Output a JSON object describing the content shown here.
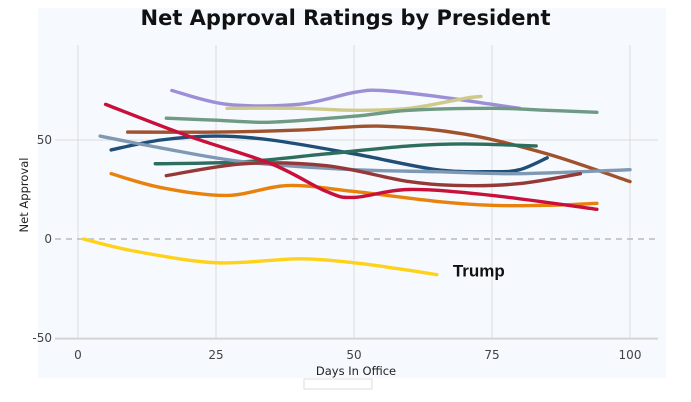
{
  "chart_data": {
    "type": "line",
    "title": "Net Approval Ratings by President",
    "xlabel": "Days In Office",
    "ylabel": "Net Approval",
    "xlim": [
      -4,
      104
    ],
    "ylim": [
      -50,
      86
    ],
    "xticks": [
      0,
      25,
      50,
      75,
      100
    ],
    "yticks": [
      -50,
      0,
      50
    ],
    "grid": true,
    "zero_line": "dashed",
    "annotation": {
      "text": "Trump",
      "x": 67,
      "y": -18
    },
    "series": [
      {
        "color": "#9b8fd6",
        "points": [
          [
            17,
            75
          ],
          [
            27,
            68
          ],
          [
            40,
            68
          ],
          [
            50,
            74
          ],
          [
            55,
            75
          ],
          [
            65,
            72
          ],
          [
            75,
            68
          ],
          [
            80,
            66
          ]
        ]
      },
      {
        "color": "#cfc98a",
        "points": [
          [
            27,
            66
          ],
          [
            40,
            66
          ],
          [
            50,
            65
          ],
          [
            60,
            66
          ],
          [
            70,
            71
          ],
          [
            73,
            72
          ]
        ]
      },
      {
        "color": "#6f9a83",
        "points": [
          [
            16,
            61
          ],
          [
            25,
            60
          ],
          [
            35,
            59
          ],
          [
            50,
            62
          ],
          [
            60,
            65
          ],
          [
            75,
            66
          ],
          [
            85,
            65
          ],
          [
            94,
            64
          ]
        ]
      },
      {
        "color": "#a0522d",
        "points": [
          [
            9,
            54
          ],
          [
            25,
            54
          ],
          [
            40,
            55
          ],
          [
            55,
            57
          ],
          [
            70,
            53
          ],
          [
            85,
            43
          ],
          [
            100,
            29
          ]
        ]
      },
      {
        "color": "#1f4e79",
        "points": [
          [
            6,
            45
          ],
          [
            15,
            50
          ],
          [
            25,
            52
          ],
          [
            35,
            50
          ],
          [
            50,
            43
          ],
          [
            65,
            35
          ],
          [
            75,
            34
          ],
          [
            80,
            35
          ],
          [
            85,
            41
          ]
        ]
      },
      {
        "color": "#2e6e5e",
        "points": [
          [
            14,
            38
          ],
          [
            30,
            39
          ],
          [
            45,
            43
          ],
          [
            60,
            47
          ],
          [
            70,
            48
          ],
          [
            83,
            47
          ]
        ]
      },
      {
        "color": "#7f98b4",
        "points": [
          [
            4,
            52
          ],
          [
            15,
            46
          ],
          [
            30,
            39
          ],
          [
            50,
            35
          ],
          [
            65,
            34
          ],
          [
            80,
            33
          ],
          [
            100,
            35
          ]
        ]
      },
      {
        "color": "#943838",
        "points": [
          [
            16,
            32
          ],
          [
            30,
            38
          ],
          [
            45,
            37
          ],
          [
            60,
            29
          ],
          [
            70,
            27
          ],
          [
            80,
            28
          ],
          [
            91,
            33
          ]
        ]
      },
      {
        "color": "#e8820c",
        "points": [
          [
            6,
            33
          ],
          [
            15,
            26
          ],
          [
            27,
            22
          ],
          [
            38,
            27
          ],
          [
            50,
            24
          ],
          [
            65,
            19
          ],
          [
            75,
            17
          ],
          [
            85,
            17
          ],
          [
            94,
            18
          ]
        ]
      },
      {
        "color": "#c8103a",
        "points": [
          [
            5,
            68
          ],
          [
            20,
            52
          ],
          [
            35,
            38
          ],
          [
            45,
            24
          ],
          [
            50,
            21
          ],
          [
            60,
            25
          ],
          [
            75,
            22
          ],
          [
            94,
            15
          ]
        ]
      },
      {
        "color": "#ffd21a",
        "points": [
          [
            1,
            0
          ],
          [
            10,
            -6
          ],
          [
            25,
            -12
          ],
          [
            40,
            -10
          ],
          [
            50,
            -12
          ],
          [
            58,
            -15
          ],
          [
            65,
            -18
          ]
        ]
      }
    ]
  }
}
